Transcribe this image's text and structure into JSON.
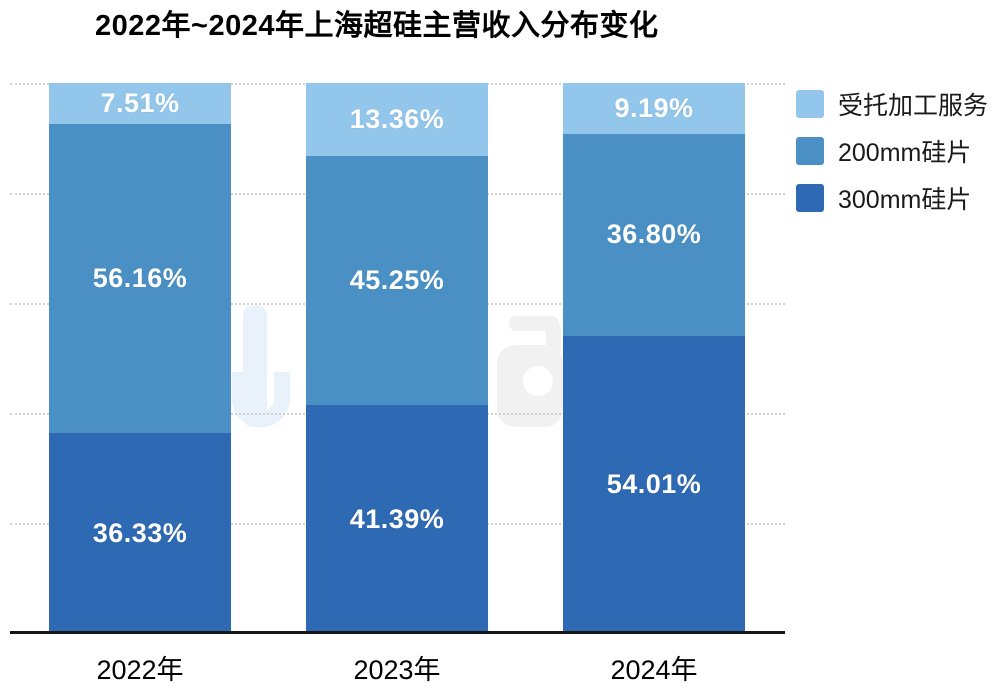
{
  "title": "2022年~2024年上海超硅主营收入分布变化",
  "legend": [
    {
      "label": "受托加工服务",
      "color": "#93C6EB"
    },
    {
      "label": "200mm硅片",
      "color": "#4A90C5"
    },
    {
      "label": "300mm硅片",
      "color": "#2E69B3"
    }
  ],
  "colors": {
    "light_blue": "#93C6EB",
    "medium_blue": "#4A90C5",
    "dark_blue": "#2E69B3",
    "axis": "#151515",
    "gridline": "#d2d2d2",
    "value_label": "#ffffff"
  },
  "chart_data": {
    "type": "bar",
    "stacked": true,
    "title": "2022年~2024年上海超硅主营收入分布变化",
    "categories": [
      "2022年",
      "2023年",
      "2024年"
    ],
    "series": [
      {
        "name": "300mm硅片",
        "color": "#2E69B3",
        "values": [
          36.33,
          41.39,
          54.01
        ],
        "labels": [
          "36.33%",
          "41.39%",
          "54.01%"
        ]
      },
      {
        "name": "200mm硅片",
        "color": "#4A90C5",
        "values": [
          56.16,
          45.25,
          36.8
        ],
        "labels": [
          "56.16%",
          "45.25%",
          "36.80%"
        ]
      },
      {
        "name": "受托加工服务",
        "color": "#93C6EB",
        "values": [
          7.51,
          13.36,
          9.19
        ],
        "labels": [
          "7.51%",
          "13.36%",
          "9.19%"
        ]
      }
    ],
    "xlabel": "",
    "ylabel": "",
    "ylim": [
      0,
      100
    ],
    "grid": {
      "step": 20,
      "style": "dotted",
      "visible": true
    },
    "legend_position": "top-right",
    "legend_order_top_to_bottom": [
      "受托加工服务",
      "200mm硅片",
      "300mm硅片"
    ],
    "value_label_format": "percent_two_decimals"
  }
}
